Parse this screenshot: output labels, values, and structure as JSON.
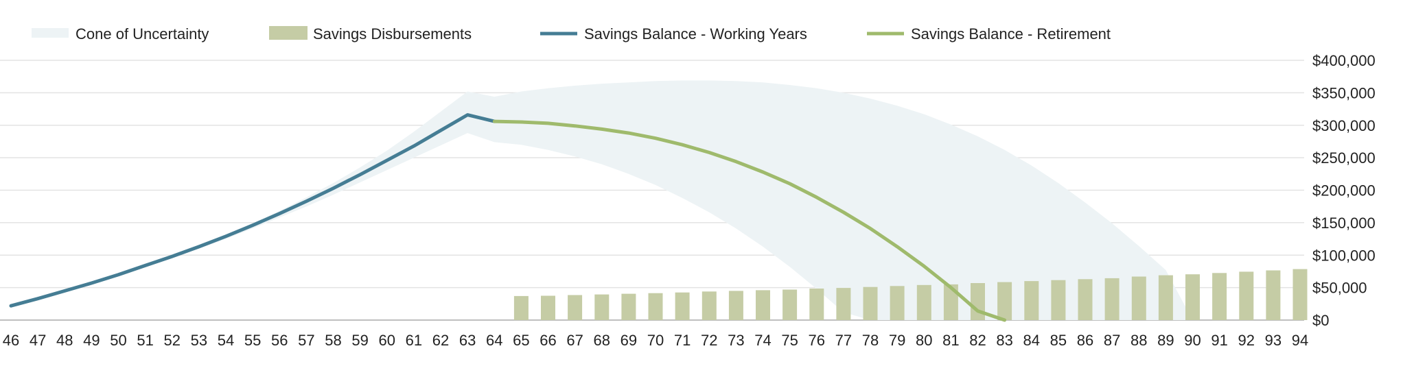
{
  "chart_data": {
    "type": "line",
    "title": "",
    "xlabel": "",
    "ylabel": "",
    "categories": [
      46,
      47,
      48,
      49,
      50,
      51,
      52,
      53,
      54,
      55,
      56,
      57,
      58,
      59,
      60,
      61,
      62,
      63,
      64,
      65,
      66,
      67,
      68,
      69,
      70,
      71,
      72,
      73,
      74,
      75,
      76,
      77,
      78,
      79,
      80,
      81,
      82,
      83,
      84,
      85,
      86,
      87,
      88,
      89,
      90,
      91,
      92,
      93,
      94
    ],
    "ylim": [
      0,
      400000
    ],
    "y_ticks": [
      0,
      50000,
      100000,
      150000,
      200000,
      250000,
      300000,
      350000,
      400000
    ],
    "y_tick_labels": [
      "$0",
      "$50,000",
      "$100,000",
      "$150,000",
      "$200,000",
      "$250,000",
      "$300,000",
      "$350,000",
      "$400,000"
    ],
    "y_axis_position": "right",
    "grid": true,
    "legend_position": "top-left",
    "legend": [
      {
        "label": "Cone of Uncertainty",
        "symbol": "area",
        "color": "#edf3f5"
      },
      {
        "label": "Savings Disbursements",
        "symbol": "bar",
        "color": "#c5cca5"
      },
      {
        "label": "Savings Balance - Working Years",
        "symbol": "line",
        "color": "#457d94"
      },
      {
        "label": "Savings Balance - Retirement",
        "symbol": "line",
        "color": "#9fba6c"
      }
    ],
    "series": [
      {
        "name": "Savings Balance - Working Years",
        "type": "line",
        "color": "#457d94",
        "x": [
          46,
          47,
          48,
          49,
          50,
          51,
          52,
          53,
          54,
          55,
          56,
          57,
          58,
          59,
          60,
          61,
          62,
          63,
          64
        ],
        "values": [
          22000,
          33000,
          45000,
          57000,
          70000,
          84000,
          98000,
          113000,
          129000,
          146000,
          164000,
          183000,
          203000,
          224000,
          246000,
          268000,
          292000,
          316000,
          306000
        ]
      },
      {
        "name": "Savings Balance - Retirement",
        "type": "line",
        "color": "#9fba6c",
        "x": [
          64,
          65,
          66,
          67,
          68,
          69,
          70,
          71,
          72,
          73,
          74,
          75,
          76,
          77,
          78,
          79,
          80,
          81,
          82,
          83
        ],
        "values": [
          306000,
          305000,
          303000,
          299000,
          294000,
          288000,
          280000,
          270000,
          258000,
          244000,
          228000,
          210000,
          189000,
          166000,
          141000,
          113000,
          83000,
          50000,
          14000,
          0
        ]
      },
      {
        "name": "Savings Disbursements",
        "type": "bar",
        "color": "#c5cca5",
        "x": [
          65,
          66,
          67,
          68,
          69,
          70,
          71,
          72,
          73,
          74,
          75,
          76,
          77,
          78,
          79,
          80,
          81,
          82,
          83,
          84,
          85,
          86,
          87,
          88,
          89,
          90,
          91,
          92,
          93,
          94
        ],
        "values": [
          37000,
          37500,
          38500,
          39500,
          40500,
          41500,
          42500,
          44000,
          45000,
          46000,
          47000,
          48500,
          49500,
          51000,
          52500,
          54000,
          55000,
          57000,
          58500,
          60000,
          61500,
          63000,
          64500,
          67000,
          69000,
          70500,
          72500,
          74500,
          76500,
          78500
        ]
      },
      {
        "name": "Cone of Uncertainty",
        "type": "band",
        "color": "#edf3f5",
        "x": [
          46,
          47,
          48,
          49,
          50,
          51,
          52,
          53,
          54,
          55,
          56,
          57,
          58,
          59,
          60,
          61,
          62,
          63,
          64,
          65,
          66,
          67,
          68,
          69,
          70,
          71,
          72,
          73,
          74,
          75,
          76,
          77,
          78,
          79,
          80,
          81,
          82,
          83,
          84,
          85,
          86,
          87,
          88,
          89,
          90
        ],
        "upper": [
          22000,
          33000,
          45000,
          57000,
          70000,
          84000,
          99000,
          115000,
          131000,
          149000,
          168000,
          189000,
          211000,
          235000,
          261000,
          290000,
          321000,
          352000,
          344000,
          352000,
          357000,
          361000,
          364000,
          366000,
          368000,
          369000,
          369000,
          368000,
          366000,
          362000,
          357000,
          350000,
          341000,
          330000,
          317000,
          301000,
          283000,
          262000,
          238000,
          211000,
          181000,
          149000,
          114000,
          77000,
          0
        ],
        "lower": [
          22000,
          33000,
          44000,
          56000,
          69000,
          82000,
          96000,
          110000,
          125000,
          141000,
          158000,
          175000,
          193000,
          212000,
          231000,
          250000,
          269000,
          288000,
          274000,
          270000,
          262000,
          252000,
          240000,
          225000,
          208000,
          188000,
          166000,
          141000,
          113000,
          82000,
          48000,
          12000,
          0,
          0,
          0,
          0,
          0,
          0,
          0,
          0,
          0,
          0,
          0,
          0,
          0
        ]
      }
    ]
  }
}
